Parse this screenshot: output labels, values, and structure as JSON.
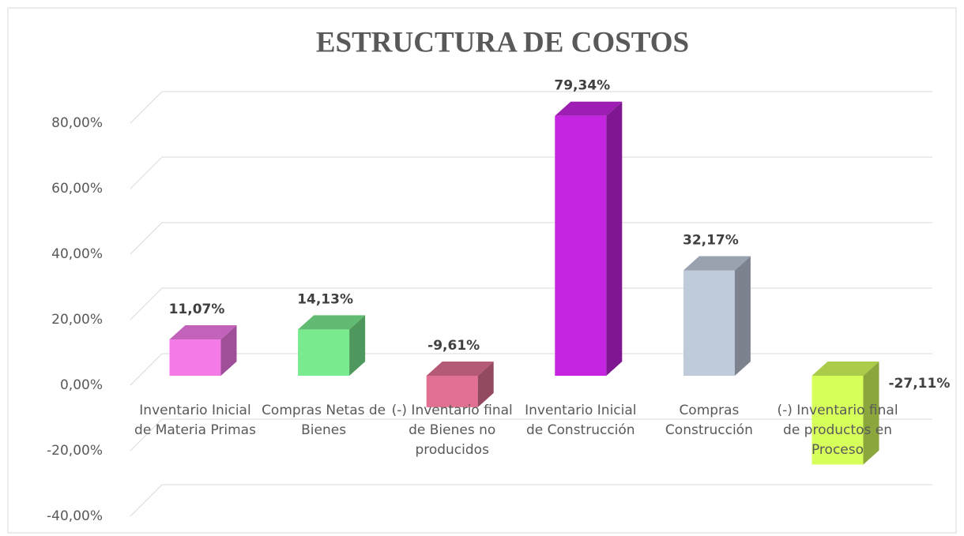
{
  "chart_data": {
    "type": "bar3d",
    "title": "ESTRUCTURA DE COSTOS",
    "categories": [
      "Inventario Inicial de Materia Primas",
      "Compras Netas de Bienes",
      "(-) Inventario final de Bienes no producidos",
      "Inventario Inicial de Construcción",
      "Compras Construcción",
      "(-) Inventario final de productos en Proceso"
    ],
    "values": [
      11.07,
      14.13,
      -9.61,
      79.34,
      32.17,
      -27.11
    ],
    "value_labels": [
      "11,07%",
      "14,13%",
      "-9,61%",
      "79,34%",
      "32,17%",
      "-27,11%"
    ],
    "colors": [
      "#f47ae8",
      "#7aea8f",
      "#e27092",
      "#c524e0",
      "#bfcadb",
      "#d6ff5c"
    ],
    "ylim": [
      -40,
      80
    ],
    "yticks": [
      {
        "value": -40,
        "label": "-40,00%"
      },
      {
        "value": -20,
        "label": "-20,00%"
      },
      {
        "value": 0,
        "label": "0,00%"
      },
      {
        "value": 20,
        "label": "20,00%"
      },
      {
        "value": 40,
        "label": "40,00%"
      },
      {
        "value": 60,
        "label": "60,00%"
      },
      {
        "value": 80,
        "label": "80,00%"
      }
    ],
    "grid": true
  }
}
